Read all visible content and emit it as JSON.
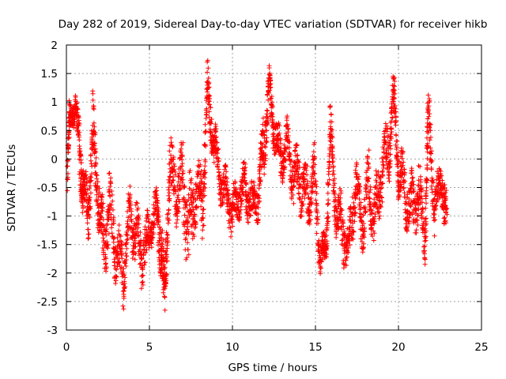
{
  "chart_data": {
    "type": "scatter",
    "title": "Day 282 of 2019, Sidereal Day-to-day VTEC variation (SDTVAR) for receiver hikb",
    "xlabel": "GPS time / hours",
    "ylabel": "SDTVAR / TECUs",
    "xlim": [
      0,
      25
    ],
    "ylim": [
      -3,
      2
    ],
    "xticks": [
      0,
      5,
      10,
      15,
      20,
      25
    ],
    "xtick_labels": [
      "0",
      "5",
      "10",
      "15",
      "20",
      "25"
    ],
    "yticks": [
      -3,
      -2.5,
      -2,
      -1.5,
      -1,
      -0.5,
      0,
      0.5,
      1,
      1.5,
      2
    ],
    "ytick_labels": [
      "-3",
      "-2.5",
      "-2",
      "-1.5",
      "-1",
      "-0.5",
      "0",
      "0.5",
      "1",
      "1.5",
      "2"
    ],
    "grid": true,
    "marker": "+",
    "series": [
      {
        "name": "SDTVAR",
        "color": "#ff0000",
        "anchors": [
          {
            "x": 0.0,
            "y": -0.8,
            "spread": 0.25
          },
          {
            "x": 0.2,
            "y": 0.8,
            "spread": 0.3
          },
          {
            "x": 0.5,
            "y": 0.9,
            "spread": 0.25
          },
          {
            "x": 0.8,
            "y": 0.2,
            "spread": 0.5
          },
          {
            "x": 1.0,
            "y": -0.6,
            "spread": 0.4
          },
          {
            "x": 1.3,
            "y": -0.9,
            "spread": 0.5
          },
          {
            "x": 1.6,
            "y": 0.5,
            "spread": 0.6
          },
          {
            "x": 1.9,
            "y": -0.6,
            "spread": 0.5
          },
          {
            "x": 2.2,
            "y": -1.5,
            "spread": 0.6
          },
          {
            "x": 2.6,
            "y": -0.9,
            "spread": 0.6
          },
          {
            "x": 3.0,
            "y": -1.6,
            "spread": 0.6
          },
          {
            "x": 3.4,
            "y": -2.0,
            "spread": 0.5
          },
          {
            "x": 3.8,
            "y": -1.0,
            "spread": 0.5
          },
          {
            "x": 4.2,
            "y": -1.3,
            "spread": 0.5
          },
          {
            "x": 4.6,
            "y": -1.8,
            "spread": 0.5
          },
          {
            "x": 5.0,
            "y": -1.3,
            "spread": 0.4
          },
          {
            "x": 5.4,
            "y": -0.9,
            "spread": 0.4
          },
          {
            "x": 5.7,
            "y": -1.4,
            "spread": 0.6
          },
          {
            "x": 5.9,
            "y": -2.5,
            "spread": 0.35
          },
          {
            "x": 6.2,
            "y": -0.2,
            "spread": 0.6
          },
          {
            "x": 6.6,
            "y": -0.6,
            "spread": 0.5
          },
          {
            "x": 7.0,
            "y": -0.4,
            "spread": 0.6
          },
          {
            "x": 7.4,
            "y": -1.2,
            "spread": 0.8
          },
          {
            "x": 7.8,
            "y": -0.6,
            "spread": 0.5
          },
          {
            "x": 8.2,
            "y": -0.8,
            "spread": 0.6
          },
          {
            "x": 8.5,
            "y": 1.2,
            "spread": 0.5
          },
          {
            "x": 8.8,
            "y": 0.4,
            "spread": 0.4
          },
          {
            "x": 9.2,
            "y": -0.3,
            "spread": 0.4
          },
          {
            "x": 9.6,
            "y": -0.6,
            "spread": 0.4
          },
          {
            "x": 10.0,
            "y": -0.9,
            "spread": 0.4
          },
          {
            "x": 10.4,
            "y": -0.7,
            "spread": 0.4
          },
          {
            "x": 10.8,
            "y": -0.5,
            "spread": 0.4
          },
          {
            "x": 11.2,
            "y": -0.8,
            "spread": 0.4
          },
          {
            "x": 11.6,
            "y": -0.6,
            "spread": 0.4
          },
          {
            "x": 11.9,
            "y": 0.3,
            "spread": 0.5
          },
          {
            "x": 12.2,
            "y": 1.2,
            "spread": 0.4
          },
          {
            "x": 12.5,
            "y": 0.5,
            "spread": 0.4
          },
          {
            "x": 12.9,
            "y": 0.0,
            "spread": 0.4
          },
          {
            "x": 13.3,
            "y": 0.3,
            "spread": 0.4
          },
          {
            "x": 13.7,
            "y": -0.3,
            "spread": 0.5
          },
          {
            "x": 14.1,
            "y": -0.4,
            "spread": 0.5
          },
          {
            "x": 14.5,
            "y": -0.7,
            "spread": 0.5
          },
          {
            "x": 14.9,
            "y": -0.2,
            "spread": 0.5
          },
          {
            "x": 15.3,
            "y": -1.8,
            "spread": 0.3
          },
          {
            "x": 15.6,
            "y": -1.6,
            "spread": 0.3
          },
          {
            "x": 15.9,
            "y": 0.4,
            "spread": 0.5
          },
          {
            "x": 16.2,
            "y": -0.9,
            "spread": 0.4
          },
          {
            "x": 16.6,
            "y": -1.2,
            "spread": 0.5
          },
          {
            "x": 17.0,
            "y": -1.6,
            "spread": 0.4
          },
          {
            "x": 17.4,
            "y": -0.4,
            "spread": 0.5
          },
          {
            "x": 17.8,
            "y": -1.2,
            "spread": 0.4
          },
          {
            "x": 18.2,
            "y": -0.4,
            "spread": 0.5
          },
          {
            "x": 18.6,
            "y": -1.0,
            "spread": 0.6
          },
          {
            "x": 19.0,
            "y": -0.2,
            "spread": 0.5
          },
          {
            "x": 19.4,
            "y": 0.1,
            "spread": 0.5
          },
          {
            "x": 19.7,
            "y": 1.1,
            "spread": 0.4
          },
          {
            "x": 20.0,
            "y": -0.2,
            "spread": 0.5
          },
          {
            "x": 20.4,
            "y": -0.6,
            "spread": 0.5
          },
          {
            "x": 20.8,
            "y": -0.8,
            "spread": 0.5
          },
          {
            "x": 21.2,
            "y": -0.6,
            "spread": 0.5
          },
          {
            "x": 21.6,
            "y": -1.4,
            "spread": 0.4
          },
          {
            "x": 21.8,
            "y": 0.8,
            "spread": 0.4
          },
          {
            "x": 22.2,
            "y": -0.9,
            "spread": 0.4
          },
          {
            "x": 22.6,
            "y": -0.3,
            "spread": 0.4
          },
          {
            "x": 22.9,
            "y": -1.2,
            "spread": 0.5
          }
        ]
      }
    ]
  }
}
